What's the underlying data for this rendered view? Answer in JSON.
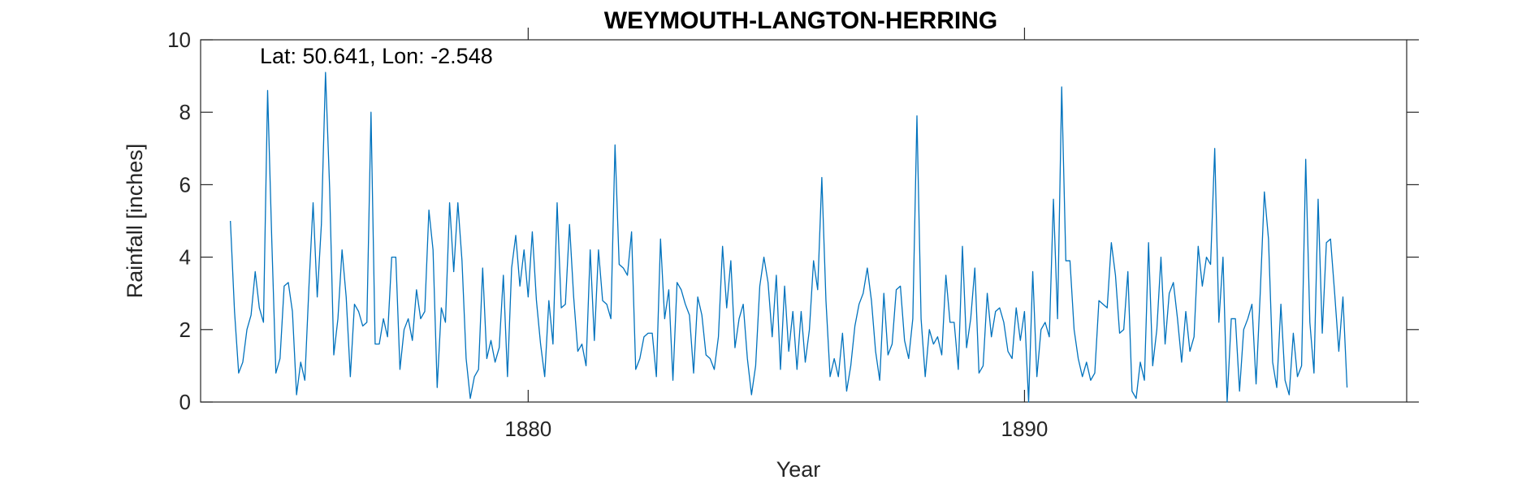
{
  "chart_data": {
    "type": "line",
    "title": "WEYMOUTH-LANGTON-HERRING",
    "annotation": "Lat: 50.641, Lon: -2.548",
    "xlabel": "Year",
    "ylabel": "Rainfall [inches]",
    "xlim": [
      1873.4,
      1897.7
    ],
    "ylim": [
      0,
      10
    ],
    "xticks": [
      1880,
      1890
    ],
    "xtick_labels": [
      "1880",
      "1890"
    ],
    "yticks": [
      0,
      2,
      4,
      6,
      8,
      10
    ],
    "ytick_labels": [
      "0",
      "2",
      "4",
      "6",
      "8",
      "10"
    ],
    "grid": false,
    "legend": "none",
    "line_color": "#0072bd",
    "series": [
      {
        "x_start": 1874.0,
        "x_step": 0.08333,
        "values": [
          5.0,
          2.5,
          0.8,
          1.1,
          2.0,
          2.4,
          3.6,
          2.6,
          2.2,
          8.6,
          4.5,
          0.8,
          1.2,
          3.2,
          3.3,
          2.5,
          0.2,
          1.1,
          0.6,
          3.2,
          5.5,
          2.9,
          4.9,
          9.1,
          5.9,
          1.3,
          2.3,
          4.2,
          2.9,
          0.7,
          2.7,
          2.5,
          2.1,
          2.2,
          8.0,
          1.6,
          1.6,
          2.3,
          1.8,
          4.0,
          4.0,
          0.9,
          2.0,
          2.3,
          1.7,
          3.1,
          2.3,
          2.5,
          5.3,
          4.2,
          0.4,
          2.6,
          2.2,
          5.5,
          3.6,
          5.5,
          3.9,
          1.2,
          0.1,
          0.7,
          0.9,
          3.7,
          1.2,
          1.7,
          1.1,
          1.5,
          3.5,
          0.7,
          3.7,
          4.6,
          3.2,
          4.2,
          2.9,
          4.7,
          2.8,
          1.6,
          0.7,
          2.8,
          1.6,
          5.5,
          2.6,
          2.7,
          4.9,
          2.9,
          1.4,
          1.6,
          1.0,
          4.2,
          1.7,
          4.2,
          2.8,
          2.7,
          2.3,
          7.1,
          3.8,
          3.7,
          3.5,
          4.7,
          0.9,
          1.2,
          1.8,
          1.9,
          1.9,
          0.7,
          4.5,
          2.3,
          3.1,
          0.6,
          3.3,
          3.1,
          2.7,
          2.4,
          0.8,
          2.9,
          2.4,
          1.3,
          1.2,
          0.9,
          1.8,
          4.3,
          2.6,
          3.9,
          1.5,
          2.3,
          2.7,
          1.2,
          0.2,
          1.0,
          3.2,
          4.0,
          3.3,
          1.8,
          3.5,
          0.9,
          3.2,
          1.4,
          2.5,
          0.9,
          2.5,
          1.1,
          2.0,
          3.9,
          3.1,
          6.2,
          2.8,
          0.7,
          1.2,
          0.7,
          1.9,
          0.3,
          1.0,
          2.1,
          2.7,
          3.0,
          3.7,
          2.8,
          1.4,
          0.6,
          3.0,
          1.3,
          1.6,
          3.1,
          3.2,
          1.7,
          1.2,
          2.3,
          7.9,
          2.3,
          0.7,
          2.0,
          1.6,
          1.8,
          1.3,
          3.5,
          2.2,
          2.2,
          0.9,
          4.3,
          1.5,
          2.3,
          3.7,
          0.8,
          1.0,
          3.0,
          1.8,
          2.5,
          2.6,
          2.2,
          1.4,
          1.2,
          2.6,
          1.7,
          2.5,
          0.0,
          3.6,
          0.7,
          2.0,
          2.2,
          1.8,
          5.6,
          2.3,
          8.7,
          3.9,
          3.9,
          2.0,
          1.2,
          0.7,
          1.1,
          0.6,
          0.8,
          2.8,
          2.7,
          2.6,
          4.4,
          3.5,
          1.9,
          2.0,
          3.6,
          0.3,
          0.1,
          1.1,
          0.6,
          4.4,
          1.0,
          2.0,
          4.0,
          1.6,
          3.0,
          3.3,
          2.3,
          1.1,
          2.5,
          1.4,
          1.8,
          4.3,
          3.2,
          4.0,
          3.8,
          7.0,
          2.2,
          4.0,
          0.0,
          2.3,
          2.3,
          0.3,
          2.0,
          2.3,
          2.7,
          0.5,
          3.0,
          5.8,
          4.5,
          1.1,
          0.4,
          2.7,
          0.6,
          0.2,
          1.9,
          0.7,
          1.0,
          6.7,
          2.2,
          0.8,
          5.6,
          1.9,
          4.4,
          4.5,
          3.0,
          1.4,
          2.9,
          0.4
        ]
      }
    ]
  }
}
